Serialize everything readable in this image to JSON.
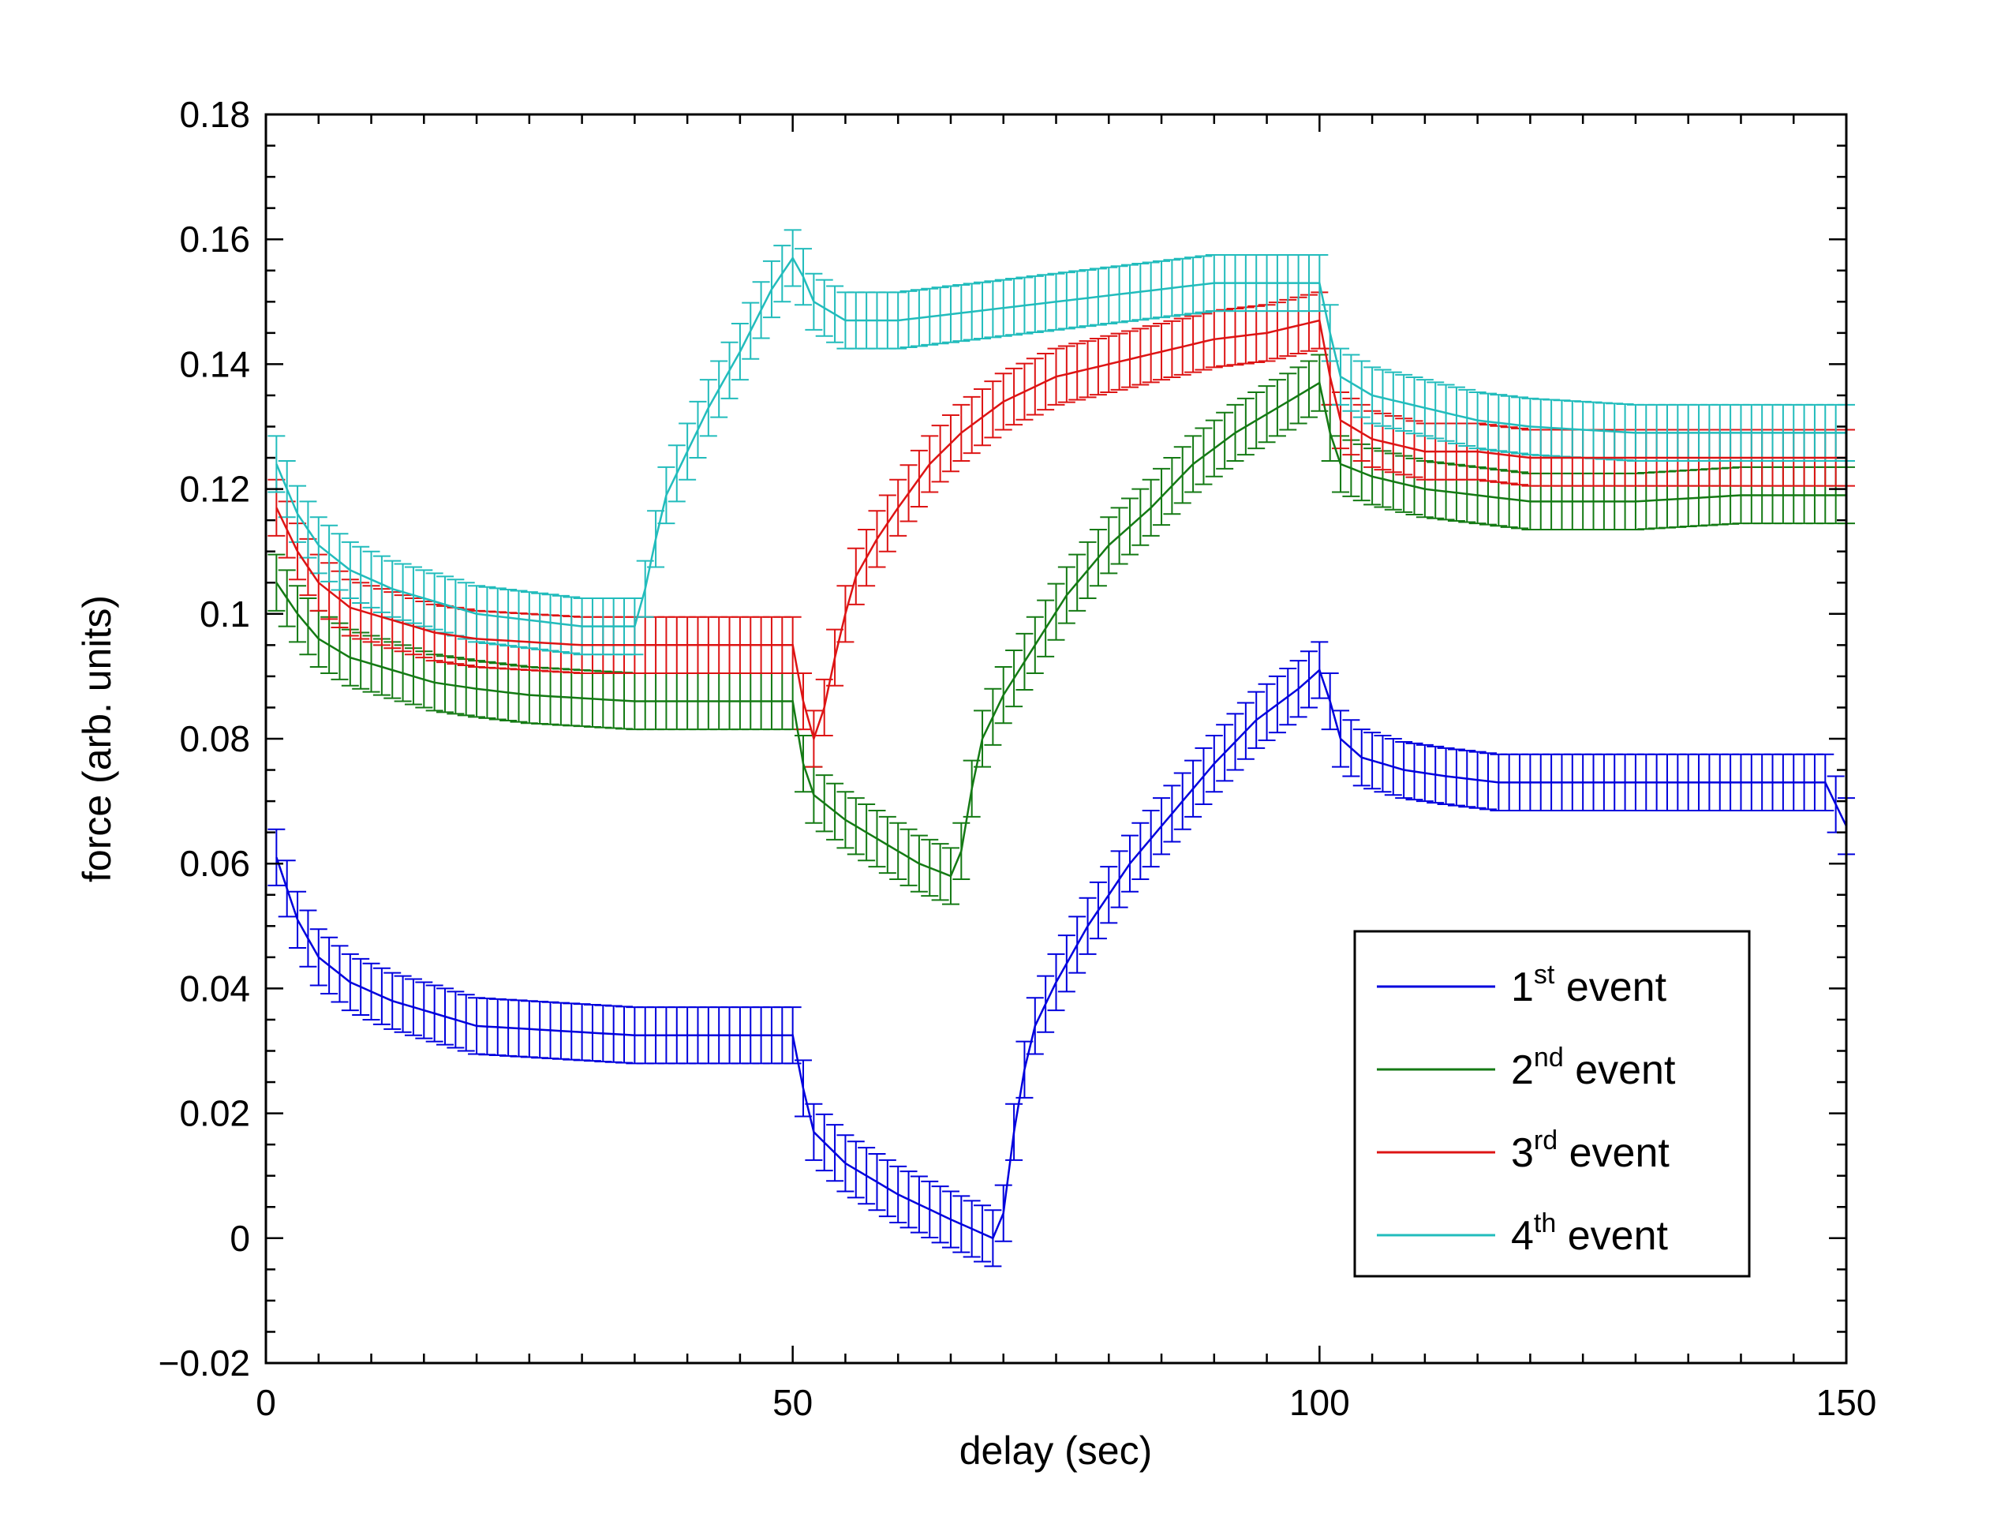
{
  "chart_data": {
    "type": "line",
    "title": "",
    "xlabel": "delay (sec)",
    "ylabel": "force (arb. units)",
    "xlim": [
      0,
      150
    ],
    "ylim": [
      -0.02,
      0.18
    ],
    "grid": false,
    "legend_position": "bottom-right",
    "x_ticks": [
      {
        "value": 0,
        "label": "0"
      },
      {
        "value": 50,
        "label": "50"
      },
      {
        "value": 100,
        "label": "100"
      },
      {
        "value": 150,
        "label": "150"
      }
    ],
    "y_ticks": [
      {
        "value": -0.02,
        "label": "−0.02"
      },
      {
        "value": 0,
        "label": "0"
      },
      {
        "value": 0.02,
        "label": "0.02"
      },
      {
        "value": 0.04,
        "label": "0.04"
      },
      {
        "value": 0.06,
        "label": "0.06"
      },
      {
        "value": 0.08,
        "label": "0.08"
      },
      {
        "value": 0.1,
        "label": "0.1"
      },
      {
        "value": 0.12,
        "label": "0.12"
      },
      {
        "value": 0.14,
        "label": "0.14"
      },
      {
        "value": 0.16,
        "label": "0.16"
      },
      {
        "value": 0.18,
        "label": "0.18"
      }
    ],
    "series": [
      {
        "name": "1st event",
        "legend_base": "1",
        "legend_sup": "st",
        "legend_rest": " event",
        "color": "#0000dd",
        "points": [
          [
            1,
            0.061
          ],
          [
            3,
            0.051
          ],
          [
            5,
            0.045
          ],
          [
            8,
            0.041
          ],
          [
            12,
            0.038
          ],
          [
            16,
            0.036
          ],
          [
            20,
            0.034
          ],
          [
            25,
            0.0335
          ],
          [
            30,
            0.033
          ],
          [
            35,
            0.0325
          ],
          [
            40,
            0.0325
          ],
          [
            45,
            0.0325
          ],
          [
            50,
            0.0325
          ],
          [
            51,
            0.024
          ],
          [
            52,
            0.017
          ],
          [
            55,
            0.012
          ],
          [
            60,
            0.007
          ],
          [
            65,
            0.003
          ],
          [
            69,
            0.0
          ],
          [
            70,
            0.004
          ],
          [
            71,
            0.017
          ],
          [
            72,
            0.027
          ],
          [
            73,
            0.034
          ],
          [
            75,
            0.041
          ],
          [
            78,
            0.05
          ],
          [
            82,
            0.06
          ],
          [
            86,
            0.068
          ],
          [
            90,
            0.076
          ],
          [
            94,
            0.083
          ],
          [
            98,
            0.088
          ],
          [
            100,
            0.091
          ],
          [
            101,
            0.086
          ],
          [
            102,
            0.08
          ],
          [
            104,
            0.077
          ],
          [
            108,
            0.075
          ],
          [
            112,
            0.074
          ],
          [
            117,
            0.073
          ],
          [
            122,
            0.073
          ],
          [
            130,
            0.073
          ],
          [
            140,
            0.073
          ],
          [
            148,
            0.073
          ],
          [
            150,
            0.066
          ]
        ],
        "error": 0.0045
      },
      {
        "name": "2nd event",
        "legend_base": "2",
        "legend_sup": "nd",
        "legend_rest": " event",
        "color": "#147a14",
        "points": [
          [
            1,
            0.105
          ],
          [
            3,
            0.1
          ],
          [
            5,
            0.096
          ],
          [
            8,
            0.093
          ],
          [
            12,
            0.091
          ],
          [
            16,
            0.089
          ],
          [
            20,
            0.088
          ],
          [
            25,
            0.087
          ],
          [
            30,
            0.0865
          ],
          [
            35,
            0.086
          ],
          [
            40,
            0.086
          ],
          [
            45,
            0.086
          ],
          [
            50,
            0.086
          ],
          [
            51,
            0.076
          ],
          [
            52,
            0.071
          ],
          [
            55,
            0.067
          ],
          [
            58,
            0.064
          ],
          [
            62,
            0.06
          ],
          [
            65,
            0.058
          ],
          [
            66,
            0.062
          ],
          [
            67,
            0.072
          ],
          [
            68,
            0.08
          ],
          [
            70,
            0.087
          ],
          [
            73,
            0.095
          ],
          [
            76,
            0.103
          ],
          [
            80,
            0.111
          ],
          [
            84,
            0.117
          ],
          [
            88,
            0.124
          ],
          [
            92,
            0.129
          ],
          [
            96,
            0.133
          ],
          [
            100,
            0.137
          ],
          [
            101,
            0.129
          ],
          [
            102,
            0.124
          ],
          [
            105,
            0.122
          ],
          [
            110,
            0.12
          ],
          [
            115,
            0.119
          ],
          [
            120,
            0.118
          ],
          [
            130,
            0.118
          ],
          [
            140,
            0.119
          ],
          [
            148,
            0.119
          ],
          [
            150,
            0.119
          ]
        ],
        "error": 0.0045
      },
      {
        "name": "3rd event",
        "legend_base": "3",
        "legend_sup": "rd",
        "legend_rest": " event",
        "color": "#dd1414",
        "points": [
          [
            1,
            0.117
          ],
          [
            3,
            0.11
          ],
          [
            5,
            0.105
          ],
          [
            8,
            0.101
          ],
          [
            12,
            0.099
          ],
          [
            16,
            0.097
          ],
          [
            20,
            0.096
          ],
          [
            25,
            0.0955
          ],
          [
            30,
            0.095
          ],
          [
            35,
            0.095
          ],
          [
            40,
            0.095
          ],
          [
            45,
            0.095
          ],
          [
            50,
            0.095
          ],
          [
            51,
            0.086
          ],
          [
            52,
            0.08
          ],
          [
            53,
            0.085
          ],
          [
            54,
            0.093
          ],
          [
            55,
            0.1
          ],
          [
            56,
            0.106
          ],
          [
            58,
            0.112
          ],
          [
            60,
            0.117
          ],
          [
            63,
            0.124
          ],
          [
            66,
            0.129
          ],
          [
            70,
            0.134
          ],
          [
            75,
            0.138
          ],
          [
            80,
            0.14
          ],
          [
            85,
            0.142
          ],
          [
            90,
            0.144
          ],
          [
            95,
            0.145
          ],
          [
            100,
            0.147
          ],
          [
            101,
            0.138
          ],
          [
            102,
            0.131
          ],
          [
            105,
            0.128
          ],
          [
            110,
            0.126
          ],
          [
            115,
            0.126
          ],
          [
            120,
            0.125
          ],
          [
            130,
            0.125
          ],
          [
            140,
            0.125
          ],
          [
            150,
            0.125
          ]
        ],
        "error": 0.0045
      },
      {
        "name": "4th event",
        "legend_base": "4",
        "legend_sup": "th",
        "legend_rest": " event",
        "color": "#22bcbc",
        "points": [
          [
            1,
            0.124
          ],
          [
            3,
            0.116
          ],
          [
            5,
            0.111
          ],
          [
            8,
            0.107
          ],
          [
            12,
            0.104
          ],
          [
            16,
            0.102
          ],
          [
            20,
            0.1
          ],
          [
            25,
            0.099
          ],
          [
            30,
            0.098
          ],
          [
            35,
            0.098
          ],
          [
            36,
            0.104
          ],
          [
            37,
            0.112
          ],
          [
            38,
            0.119
          ],
          [
            40,
            0.126
          ],
          [
            42,
            0.133
          ],
          [
            45,
            0.142
          ],
          [
            48,
            0.152
          ],
          [
            50,
            0.157
          ],
          [
            51,
            0.154
          ],
          [
            52,
            0.15
          ],
          [
            55,
            0.147
          ],
          [
            60,
            0.147
          ],
          [
            65,
            0.148
          ],
          [
            70,
            0.149
          ],
          [
            75,
            0.15
          ],
          [
            80,
            0.151
          ],
          [
            85,
            0.152
          ],
          [
            90,
            0.153
          ],
          [
            95,
            0.153
          ],
          [
            100,
            0.153
          ],
          [
            101,
            0.145
          ],
          [
            102,
            0.138
          ],
          [
            105,
            0.135
          ],
          [
            110,
            0.133
          ],
          [
            115,
            0.131
          ],
          [
            120,
            0.13
          ],
          [
            130,
            0.129
          ],
          [
            140,
            0.129
          ],
          [
            150,
            0.129
          ]
        ],
        "error": 0.0045
      }
    ]
  }
}
